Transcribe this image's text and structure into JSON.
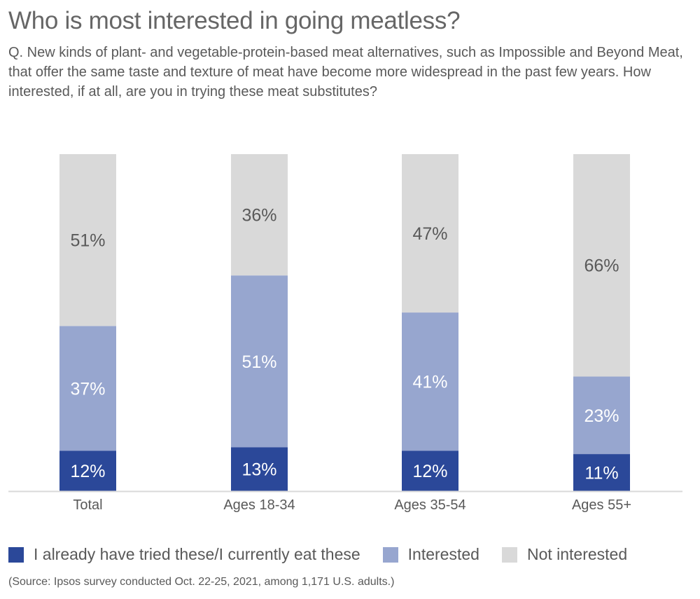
{
  "title": "Who is most interested in going meatless?",
  "subtitle": "Q. New kinds of plant- and vegetable-protein-based meat alternatives, such as Impossible and Beyond Meat, that offer the same taste and texture of meat have become more widespread in the past few years. How interested, if at all, are you in trying these meat substitutes?",
  "source": "(Source: Ipsos survey conducted Oct. 22-25, 2021, among 1,171 U.S. adults.)",
  "chart_data": {
    "type": "bar",
    "stacked": true,
    "categories": [
      "Total",
      "Ages 18-34",
      "Ages 35-54",
      "Ages 55+"
    ],
    "series": [
      {
        "name": "I already have tried these/I currently eat these",
        "values": [
          12,
          13,
          12,
          11
        ],
        "color": "#2b4899",
        "label_color": "#ffffff"
      },
      {
        "name": "Interested",
        "values": [
          37,
          51,
          41,
          23
        ],
        "color": "#97a6cf",
        "label_color": "#ffffff"
      },
      {
        "name": "Not interested",
        "values": [
          51,
          36,
          47,
          66
        ],
        "color": "#d9d9d9",
        "label_color": "#595959"
      }
    ],
    "value_suffix": "%",
    "ylim": [
      0,
      100
    ],
    "grid": false,
    "legend_position": "bottom"
  }
}
